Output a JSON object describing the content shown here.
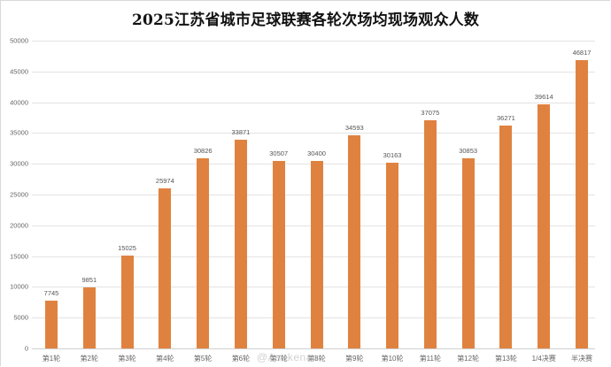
{
  "chart_data": {
    "type": "bar",
    "title": "2025江苏省城市足球联赛各轮次场均现场观众人数",
    "xlabel": "",
    "ylabel": "",
    "ylim": [
      0,
      50000
    ],
    "yticks": [
      0,
      5000,
      10000,
      15000,
      20000,
      25000,
      30000,
      35000,
      40000,
      45000,
      50000
    ],
    "grid": true,
    "legend": null,
    "bar_color": "#E0823F",
    "categories": [
      "第1轮",
      "第2轮",
      "第3轮",
      "第4轮",
      "第5轮",
      "第6轮",
      "第7轮",
      "第8轮",
      "第9轮",
      "第10轮",
      "第11轮",
      "第12轮",
      "第13轮",
      "1/4决赛",
      "半决赛"
    ],
    "values": [
      7745,
      9851,
      15025,
      25974,
      30826,
      33871,
      30507,
      30400,
      34593,
      30163,
      37075,
      30853,
      36271,
      39614,
      46817
    ]
  },
  "watermark": "@Asakenao"
}
